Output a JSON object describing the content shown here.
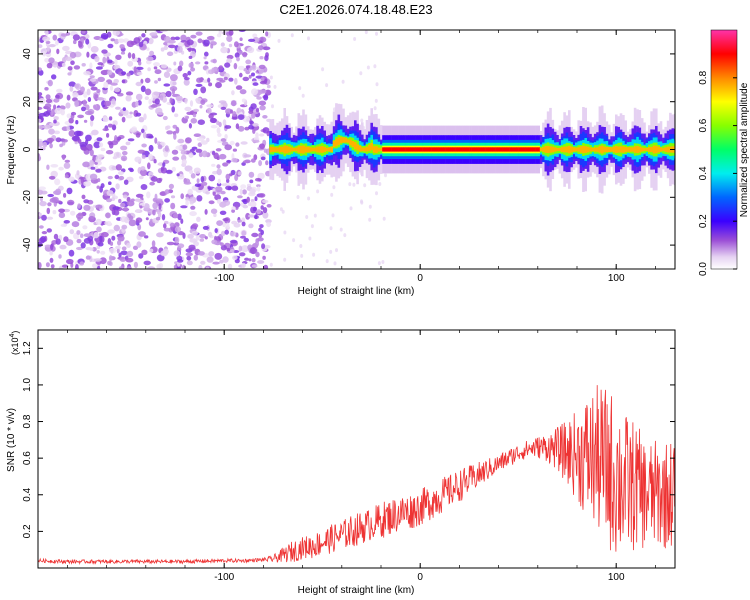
{
  "title": "C2E1.2026.074.18.48.E23",
  "chart_data": [
    {
      "type": "heatmap",
      "title": "C2E1.2026.074.18.48.E23",
      "xlabel": "Height of straight line (km)",
      "ylabel": "Frequency (Hz)",
      "xlim": [
        -195,
        130
      ],
      "ylim": [
        -50,
        50
      ],
      "xticks": [
        -100,
        0,
        100
      ],
      "xtick_labels": [
        "-100",
        "0",
        "100"
      ],
      "yticks": [
        -40,
        -20,
        0,
        20,
        40
      ],
      "ytick_labels": [
        "-40",
        "-20",
        "0",
        "20",
        "40"
      ],
      "colorbar": {
        "label": "Normalized spectral amplitude",
        "range": [
          0,
          1
        ],
        "ticks": [
          0.0,
          0.2,
          0.4,
          0.6,
          0.8
        ],
        "tick_labels": [
          "0.0",
          "0.2",
          "0.4",
          "0.6",
          "0.8"
        ],
        "colormap": "white-purple-blue-cyan-green-yellow-red-magenta"
      },
      "features": [
        {
          "name": "noise_region",
          "x_range": [
            -195,
            -77
          ],
          "freq_range": [
            -50,
            50
          ],
          "amplitude": 0.05
        },
        {
          "name": "signal_band",
          "x_range": [
            -77,
            130
          ],
          "center_freq": 0,
          "amplitude_peak": 0.95
        }
      ]
    },
    {
      "type": "line",
      "xlabel": "Height of straight line (km)",
      "ylabel": "SNR (10 * v/v)",
      "y_multiplier": "(x10",
      "y_multiplier_exp": "4",
      "y_multiplier_close": ")",
      "xlim": [
        -195,
        130
      ],
      "ylim": [
        0,
        1.3
      ],
      "xticks": [
        -100,
        0,
        100
      ],
      "xtick_labels": [
        "-100",
        "0",
        "100"
      ],
      "yticks": [
        0.2,
        0.4,
        0.6,
        0.8,
        1.0,
        1.2
      ],
      "ytick_labels": [
        "0.2",
        "0.4",
        "0.6",
        "0.8",
        "1.0",
        "1.2"
      ],
      "series": [
        {
          "name": "SNR",
          "color": "#ee3333",
          "x": [
            -195,
            -180,
            -160,
            -140,
            -120,
            -100,
            -90,
            -80,
            -75,
            -70,
            -65,
            -60,
            -55,
            -50,
            -45,
            -40,
            -35,
            -30,
            -25,
            -20,
            -15,
            -10,
            -5,
            0,
            5,
            10,
            15,
            20,
            25,
            30,
            35,
            40,
            45,
            50,
            55,
            60,
            65,
            70,
            75,
            80,
            85,
            90,
            95,
            100,
            105,
            110,
            115,
            120,
            125,
            130
          ],
          "values": [
            0.04,
            0.035,
            0.035,
            0.035,
            0.035,
            0.04,
            0.04,
            0.045,
            0.05,
            0.07,
            0.09,
            0.11,
            0.12,
            0.14,
            0.16,
            0.18,
            0.2,
            0.22,
            0.24,
            0.26,
            0.28,
            0.3,
            0.31,
            0.33,
            0.36,
            0.39,
            0.42,
            0.45,
            0.48,
            0.51,
            0.54,
            0.57,
            0.6,
            0.63,
            0.65,
            0.66,
            0.66,
            0.65,
            0.63,
            0.62,
            0.6,
            0.6,
            0.55,
            0.5,
            0.45,
            0.45,
            0.4,
            0.4,
            0.4,
            0.42
          ],
          "noise_amplitude": [
            0.01,
            0.01,
            0.01,
            0.01,
            0.01,
            0.01,
            0.01,
            0.01,
            0.02,
            0.04,
            0.06,
            0.06,
            0.07,
            0.07,
            0.08,
            0.08,
            0.09,
            0.09,
            0.09,
            0.1,
            0.1,
            0.1,
            0.1,
            0.1,
            0.1,
            0.1,
            0.09,
            0.09,
            0.08,
            0.07,
            0.06,
            0.05,
            0.05,
            0.05,
            0.05,
            0.06,
            0.08,
            0.12,
            0.18,
            0.25,
            0.35,
            0.4,
            0.45,
            0.45,
            0.4,
            0.35,
            0.3,
            0.3,
            0.3,
            0.3
          ]
        }
      ]
    }
  ]
}
